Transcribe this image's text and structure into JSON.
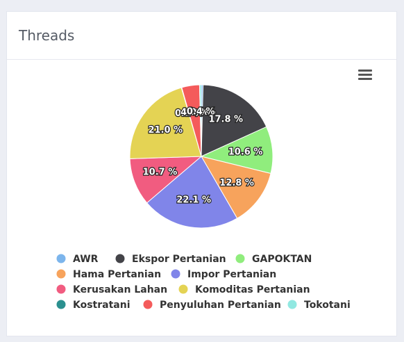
{
  "card": {
    "title": "Threads"
  },
  "menu": {
    "icon": "hamburger-menu-icon"
  },
  "chart_data": {
    "type": "pie",
    "slices": [
      {
        "name": "AWR",
        "value": 0.4,
        "label": "0.4 %",
        "color": "#7cb5ec"
      },
      {
        "name": "Ekspor Pertanian",
        "value": 17.8,
        "label": "17.8 %",
        "color": "#434348"
      },
      {
        "name": "GAPOKTAN",
        "value": 10.6,
        "label": "10.6 %",
        "color": "#90ed7d"
      },
      {
        "name": "Hama Pertanian",
        "value": 12.8,
        "label": "12.8 %",
        "color": "#f7a35c"
      },
      {
        "name": "Impor Pertanian",
        "value": 22.1,
        "label": "22.1 %",
        "color": "#8085e9"
      },
      {
        "name": "Kerusakan Lahan",
        "value": 10.7,
        "label": "10.7 %",
        "color": "#f15c80"
      },
      {
        "name": "Komoditas Pertanian",
        "value": 21.0,
        "label": "21.0 %",
        "color": "#e4d354"
      },
      {
        "name": "Kostratani",
        "value": 0.1,
        "label": "0.1 %",
        "color": "#2b908f"
      },
      {
        "name": "Penyuluhan Pertanian",
        "value": 4.0,
        "label": "4.0 %",
        "color": "#f45b5b"
      },
      {
        "name": "Tokotani",
        "value": 0.4,
        "label": "0.4 %",
        "color": "#91e8e1"
      }
    ],
    "legend_position": "bottom"
  }
}
